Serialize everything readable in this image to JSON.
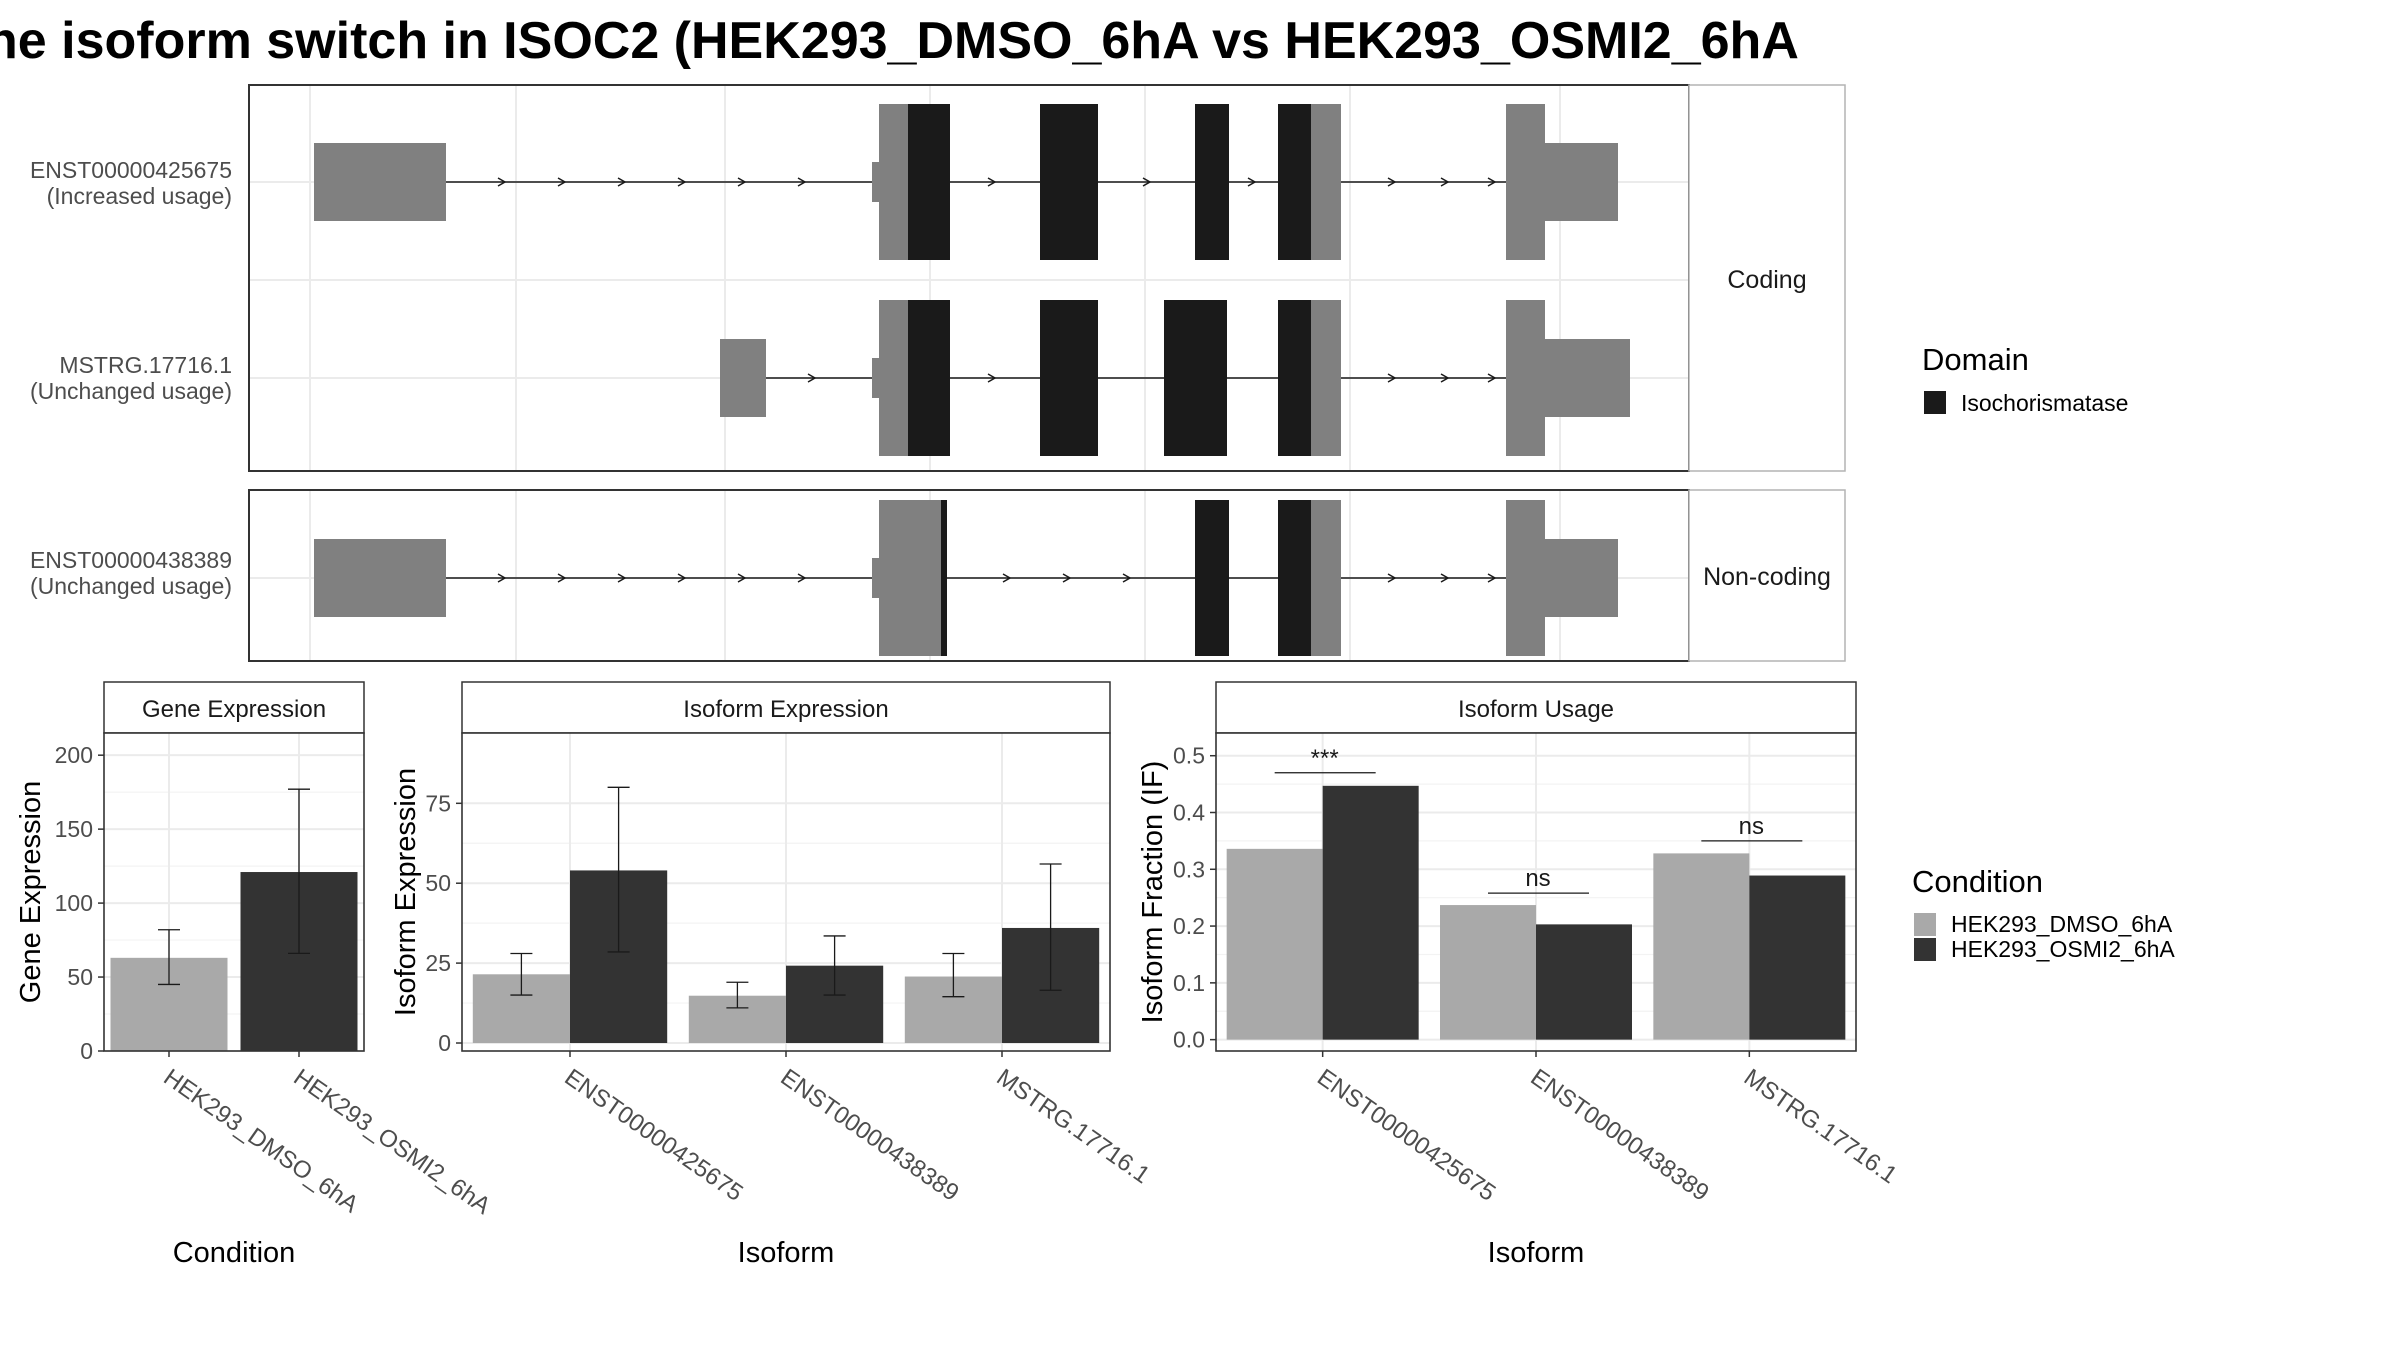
{
  "title": "he isoform switch in ISOC2 (HEK293_DMSO_6hA vs HEK293_OSMI2_6hA",
  "colors": {
    "dmso": "#a9a9a9",
    "osmi2": "#333333",
    "utr": "#808080",
    "domain": "#1a1a1a",
    "grid": "#ebebeb",
    "strip_bg": "#ffffff"
  },
  "structure": {
    "strips": [
      "Coding",
      "Non-coding"
    ],
    "transcripts": [
      {
        "label_id": "ENST00000425675",
        "label_usage": "(Increased usage)",
        "group": "Coding"
      },
      {
        "label_id": "MSTRG.17716.1",
        "label_usage": "(Unchanged usage)",
        "group": "Coding"
      },
      {
        "label_id": "ENST00000438389",
        "label_usage": "(Unchanged usage)",
        "group": "Non-coding"
      }
    ],
    "legend_domain_title": "Domain",
    "legend_domain_item": "Isochorismatase"
  },
  "chart_data": [
    {
      "type": "bar",
      "title": "Gene Expression",
      "xlabel": "Condition",
      "ylabel": "Gene Expression",
      "categories": [
        "HEK293_DMSO_6hA",
        "HEK293_OSMI2_6hA"
      ],
      "values": [
        63,
        121
      ],
      "errors": [
        [
          45,
          82
        ],
        [
          66,
          177
        ]
      ],
      "ylim": [
        0,
        215
      ],
      "yticks": [
        0,
        50,
        100,
        150,
        200
      ]
    },
    {
      "type": "bar",
      "title": "Isoform Expression",
      "xlabel": "Isoform",
      "ylabel": "Isoform Expression",
      "categories": [
        "ENST00000425675",
        "ENST00000438389",
        "MSTRG.17716.1"
      ],
      "series": [
        {
          "name": "HEK293_DMSO_6hA",
          "values": [
            21.5,
            14.8,
            20.8
          ],
          "errors": [
            [
              15,
              28
            ],
            [
              11,
              19
            ],
            [
              14.5,
              28
            ]
          ]
        },
        {
          "name": "HEK293_OSMI2_6hA",
          "values": [
            54,
            24.2,
            36
          ],
          "errors": [
            [
              28.5,
              80
            ],
            [
              15,
              33.5
            ],
            [
              16.5,
              56
            ]
          ]
        }
      ],
      "ylim": [
        -2.5,
        97
      ],
      "yticks": [
        0,
        25,
        50,
        75
      ]
    },
    {
      "type": "bar",
      "title": "Isoform Usage",
      "xlabel": "Isoform",
      "ylabel": "Isoform Fraction (IF)",
      "categories": [
        "ENST00000425675",
        "ENST00000438389",
        "MSTRG.17716.1"
      ],
      "series": [
        {
          "name": "HEK293_DMSO_6hA",
          "values": [
            0.336,
            0.237,
            0.328
          ]
        },
        {
          "name": "HEK293_OSMI2_6hA",
          "values": [
            0.447,
            0.203,
            0.289
          ]
        }
      ],
      "annotations": [
        "***",
        "ns",
        "ns"
      ],
      "annotation_levels": [
        0.47,
        0.258,
        0.35
      ],
      "ylim": [
        -0.02,
        0.54
      ],
      "yticks": [
        0.0,
        0.1,
        0.2,
        0.3,
        0.4,
        0.5
      ],
      "ytick_labels": [
        "0.0",
        "0.1",
        "0.2",
        "0.3",
        "0.4",
        "0.5"
      ]
    }
  ],
  "legend_condition": {
    "title": "Condition",
    "items": [
      "HEK293_DMSO_6hA",
      "HEK293_OSMI2_6hA"
    ]
  }
}
